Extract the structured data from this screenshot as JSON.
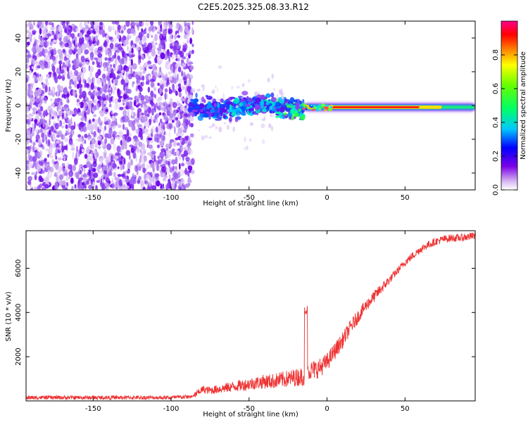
{
  "title": "C2E5.2025.325.08.33.R12",
  "chart_data": [
    {
      "type": "heatmap",
      "xlabel": "Height of straight line (km)",
      "ylabel": "Frequency (Hz)",
      "xlim": [
        -193,
        95
      ],
      "ylim": [
        -50,
        50
      ],
      "xticks": [
        -150,
        -100,
        -50,
        0,
        50
      ],
      "yticks": [
        -40,
        -20,
        0,
        20,
        40
      ],
      "colorbar": {
        "label": "Normalized spectral amplitude",
        "range": [
          0.0,
          1.0
        ],
        "ticks": [
          "0.0",
          "0.2",
          "0.4",
          "0.6",
          "0.8"
        ],
        "colormap": "rainbow (white → purple → blue → cyan → green → yellow → red → magenta)"
      },
      "features": {
        "noise_region_x": [
          -193,
          -88
        ],
        "scatter_band_x": [
          -88,
          -15
        ],
        "steady_line_x": [
          -15,
          95
        ],
        "steady_line_freq": -1,
        "peak_amplitude_x": [
          0,
          60
        ]
      }
    },
    {
      "type": "line",
      "xlabel": "Height of straight line (km)",
      "ylabel": "SNR (10 * v/v)",
      "xlim": [
        -193,
        95
      ],
      "ylim": [
        0,
        7700
      ],
      "xticks": [
        -150,
        -100,
        -50,
        0,
        50
      ],
      "yticks": [
        2000,
        4000,
        6000
      ],
      "color": "#ee3333",
      "series": [
        {
          "x": [
            -193,
            -150,
            -100,
            -85,
            -80,
            -75,
            -70,
            -65,
            -60,
            -55,
            -50,
            -45,
            -40,
            -35,
            -30,
            -25,
            -20,
            -15,
            -13,
            -10,
            -5,
            0,
            5,
            10,
            15,
            20,
            25,
            30,
            35,
            40,
            45,
            50,
            55,
            60,
            65,
            70,
            75,
            80,
            85,
            90,
            95
          ],
          "values": [
            150,
            150,
            150,
            200,
            450,
            400,
            450,
            500,
            550,
            600,
            650,
            700,
            750,
            750,
            800,
            850,
            900,
            950,
            4300,
            1200,
            1300,
            1600,
            2100,
            2600,
            3200,
            3700,
            4200,
            4600,
            5000,
            5400,
            5800,
            6200,
            6500,
            6800,
            7000,
            7150,
            7250,
            7300,
            7300,
            7350,
            7400
          ]
        }
      ]
    }
  ]
}
